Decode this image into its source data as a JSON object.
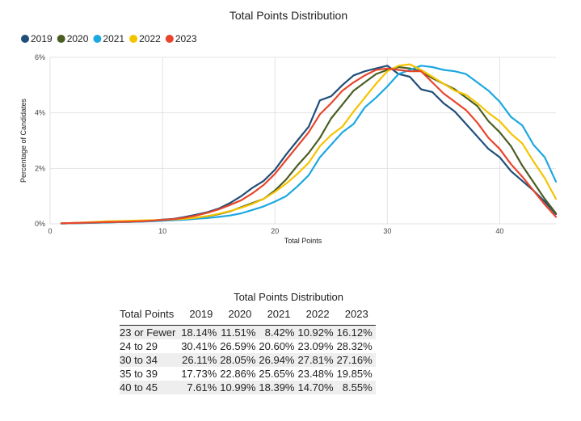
{
  "chart_data": {
    "type": "line",
    "title": "Total Points Distribution",
    "xlabel": "Total Points",
    "ylabel": "Percentage of Candidates",
    "xlim": [
      0,
      45
    ],
    "ylim": [
      0,
      6
    ],
    "xticks": [
      0,
      10,
      20,
      30,
      40
    ],
    "yticks": [
      0,
      2,
      4,
      6
    ],
    "ytick_suffix": "%",
    "grid": true,
    "legend_position": "top-left",
    "x": [
      1,
      2,
      3,
      4,
      5,
      6,
      7,
      8,
      9,
      10,
      11,
      12,
      13,
      14,
      15,
      16,
      17,
      18,
      19,
      20,
      21,
      22,
      23,
      24,
      25,
      26,
      27,
      28,
      29,
      30,
      31,
      32,
      33,
      34,
      35,
      36,
      37,
      38,
      39,
      40,
      41,
      42,
      43,
      44,
      45
    ],
    "series": [
      {
        "name": "2019",
        "color": "#1f4e79",
        "values": [
          0.02,
          0.03,
          0.04,
          0.05,
          0.06,
          0.07,
          0.08,
          0.1,
          0.12,
          0.15,
          0.18,
          0.25,
          0.33,
          0.42,
          0.55,
          0.75,
          1.0,
          1.3,
          1.55,
          1.95,
          2.5,
          3.0,
          3.5,
          4.45,
          4.6,
          5.0,
          5.35,
          5.5,
          5.6,
          5.7,
          5.4,
          5.3,
          4.85,
          4.75,
          4.35,
          4.05,
          3.6,
          3.15,
          2.7,
          2.4,
          1.9,
          1.55,
          1.2,
          0.8,
          0.35
        ]
      },
      {
        "name": "2020",
        "color": "#4a5e23",
        "values": [
          0.01,
          0.02,
          0.03,
          0.04,
          0.05,
          0.06,
          0.07,
          0.08,
          0.1,
          0.12,
          0.15,
          0.18,
          0.22,
          0.27,
          0.35,
          0.45,
          0.6,
          0.75,
          0.9,
          1.2,
          1.6,
          2.1,
          2.55,
          3.1,
          3.8,
          4.3,
          4.8,
          5.1,
          5.4,
          5.55,
          5.65,
          5.6,
          5.5,
          5.25,
          5.05,
          4.85,
          4.55,
          4.25,
          3.7,
          3.3,
          2.8,
          2.1,
          1.5,
          0.9,
          0.38
        ]
      },
      {
        "name": "2021",
        "color": "#1ca8e0",
        "values": [
          0.01,
          0.02,
          0.03,
          0.04,
          0.05,
          0.06,
          0.07,
          0.08,
          0.09,
          0.11,
          0.13,
          0.15,
          0.18,
          0.21,
          0.25,
          0.3,
          0.38,
          0.5,
          0.63,
          0.8,
          1.0,
          1.35,
          1.75,
          2.4,
          2.85,
          3.3,
          3.6,
          4.2,
          4.55,
          4.95,
          5.4,
          5.55,
          5.7,
          5.65,
          5.55,
          5.5,
          5.4,
          5.1,
          4.8,
          4.4,
          3.85,
          3.55,
          2.85,
          2.4,
          1.52
        ]
      },
      {
        "name": "2022",
        "color": "#f5c400",
        "values": [
          0.02,
          0.03,
          0.05,
          0.07,
          0.09,
          0.1,
          0.11,
          0.12,
          0.13,
          0.14,
          0.16,
          0.18,
          0.22,
          0.28,
          0.36,
          0.46,
          0.58,
          0.72,
          0.9,
          1.15,
          1.45,
          1.8,
          2.2,
          2.8,
          3.2,
          3.5,
          4.05,
          4.55,
          5.05,
          5.5,
          5.7,
          5.75,
          5.55,
          5.3,
          5.05,
          4.8,
          4.65,
          4.35,
          4.0,
          3.7,
          3.25,
          2.9,
          2.25,
          1.65,
          0.9
        ]
      },
      {
        "name": "2023",
        "color": "#e8452c",
        "values": [
          0.02,
          0.03,
          0.04,
          0.05,
          0.06,
          0.07,
          0.08,
          0.09,
          0.11,
          0.14,
          0.17,
          0.22,
          0.3,
          0.4,
          0.52,
          0.68,
          0.85,
          1.1,
          1.4,
          1.8,
          2.3,
          2.8,
          3.3,
          3.95,
          4.35,
          4.8,
          5.1,
          5.35,
          5.55,
          5.6,
          5.55,
          5.5,
          5.5,
          5.1,
          4.7,
          4.4,
          4.1,
          3.65,
          3.1,
          2.7,
          2.15,
          1.7,
          1.2,
          0.7,
          0.25
        ]
      }
    ]
  },
  "table": {
    "title": "Total Points Distribution",
    "headers": [
      "Total Points",
      "2019",
      "2020",
      "2021",
      "2022",
      "2023"
    ],
    "rows": [
      [
        "23 or Fewer",
        "18.14%",
        "11.51%",
        "8.42%",
        "10.92%",
        "16.12%"
      ],
      [
        "24 to 29",
        "30.41%",
        "26.59%",
        "20.60%",
        "23.09%",
        "28.32%"
      ],
      [
        "30 to 34",
        "26.11%",
        "28.05%",
        "26.94%",
        "27.81%",
        "27.16%"
      ],
      [
        "35 to 39",
        "17.73%",
        "22.86%",
        "25.65%",
        "23.48%",
        "19.85%"
      ],
      [
        "40 to 45",
        "7.61%",
        "10.99%",
        "18.39%",
        "14.70%",
        "8.55%"
      ]
    ]
  }
}
